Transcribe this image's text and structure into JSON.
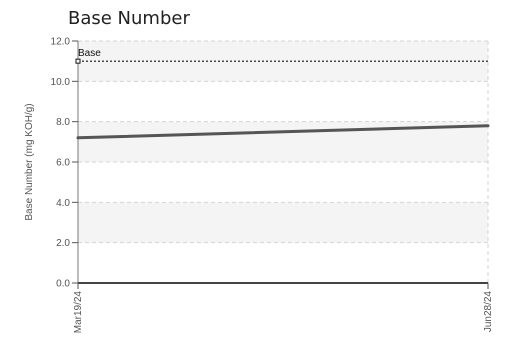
{
  "chart_data": {
    "type": "line",
    "title": "Base Number",
    "ylabel": "Base Number (mg KOH/g)",
    "xlabel": "",
    "ylim": [
      0,
      12
    ],
    "y_ticks": [
      0,
      2,
      4,
      6,
      8,
      10,
      12
    ],
    "y_tick_labels": [
      "0.0",
      "2.0",
      "4.0",
      "6.0",
      "8.0",
      "10.0",
      "12.0"
    ],
    "x": [
      "Mar19/24",
      "Jun28/24"
    ],
    "series": [
      {
        "values": [
          7.2,
          7.8
        ],
        "color": "#555555"
      }
    ],
    "reference_lines": [
      {
        "name": "Base",
        "value": 11.0,
        "style": "dotted",
        "color": "#111111"
      }
    ],
    "grid": true,
    "band_color": "#f4f4f4"
  }
}
